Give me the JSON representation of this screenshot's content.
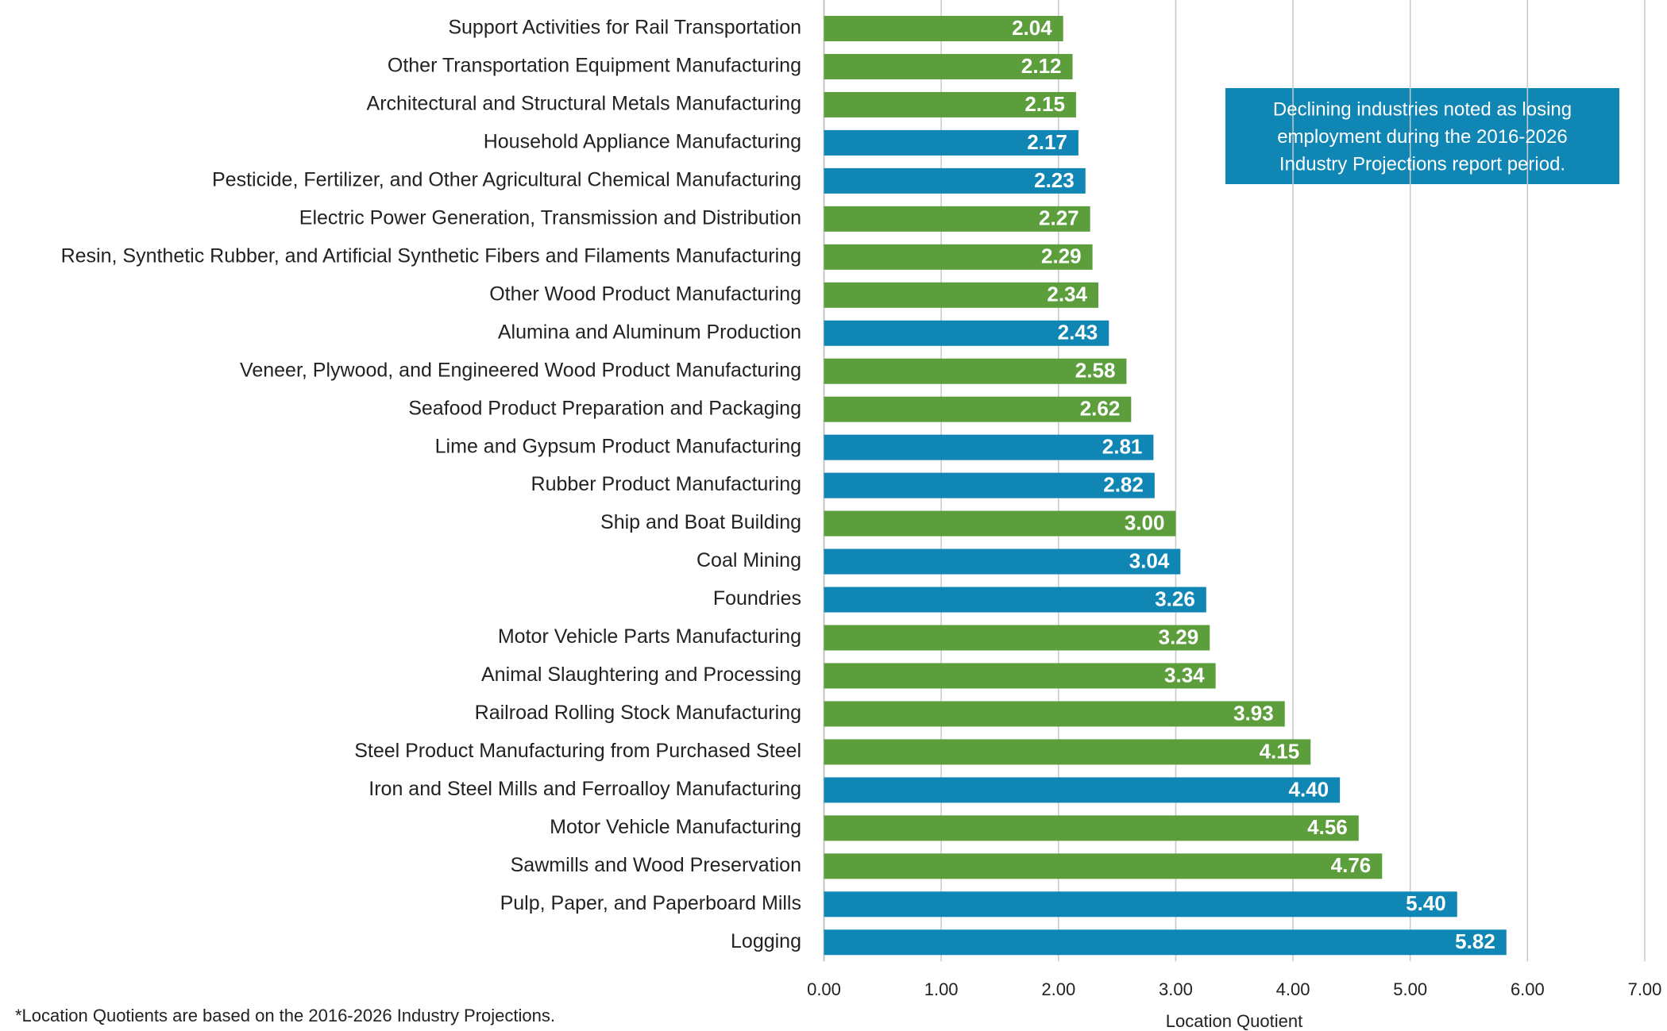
{
  "chart_data": {
    "type": "barh",
    "categories": [
      "Support Activities for Rail Transportation",
      "Other Transportation Equipment Manufacturing",
      "Architectural and Structural Metals Manufacturing",
      "Household Appliance Manufacturing",
      "Pesticide, Fertilizer, and Other Agricultural Chemical Manufacturing",
      "Electric Power Generation, Transmission and Distribution",
      "Resin, Synthetic Rubber, and Artificial Synthetic Fibers and Filaments Manufacturing",
      "Other Wood Product Manufacturing",
      "Alumina and Aluminum Production",
      "Veneer, Plywood, and Engineered Wood Product Manufacturing",
      "Seafood Product Preparation and Packaging",
      "Lime and Gypsum Product Manufacturing",
      "Rubber Product Manufacturing",
      "Ship and Boat Building",
      "Coal Mining",
      "Foundries",
      "Motor Vehicle Parts Manufacturing",
      "Animal Slaughtering and Processing",
      "Railroad Rolling Stock Manufacturing",
      "Steel Product Manufacturing from Purchased Steel",
      "Iron and Steel Mills and Ferroalloy Manufacturing",
      "Motor Vehicle Manufacturing",
      "Sawmills and Wood Preservation",
      "Pulp, Paper, and Paperboard Mills",
      "Logging"
    ],
    "values": [
      2.04,
      2.12,
      2.15,
      2.17,
      2.23,
      2.27,
      2.29,
      2.34,
      2.43,
      2.58,
      2.62,
      2.81,
      2.82,
      3.0,
      3.04,
      3.26,
      3.29,
      3.34,
      3.93,
      4.15,
      4.4,
      4.56,
      4.76,
      5.4,
      5.82
    ],
    "value_labels": [
      "2.04",
      "2.12",
      "2.15",
      "2.17",
      "2.23",
      "2.27",
      "2.29",
      "2.34",
      "2.43",
      "2.58",
      "2.62",
      "2.81",
      "2.82",
      "3.00",
      "3.04",
      "3.26",
      "3.29",
      "3.34",
      "3.93",
      "4.15",
      "4.40",
      "4.56",
      "4.76",
      "5.40",
      "5.82"
    ],
    "colors": [
      "#5b9e3b",
      "#5b9e3b",
      "#5b9e3b",
      "#0f86b3",
      "#0f86b3",
      "#5b9e3b",
      "#5b9e3b",
      "#5b9e3b",
      "#0f86b3",
      "#5b9e3b",
      "#5b9e3b",
      "#0f86b3",
      "#0f86b3",
      "#5b9e3b",
      "#0f86b3",
      "#0f86b3",
      "#5b9e3b",
      "#5b9e3b",
      "#5b9e3b",
      "#5b9e3b",
      "#0f86b3",
      "#5b9e3b",
      "#5b9e3b",
      "#0f86b3",
      "#0f86b3"
    ],
    "xlim": [
      0,
      7
    ],
    "xticks": [
      {
        "value": 0,
        "label": "0.00"
      },
      {
        "value": 1,
        "label": "1.00"
      },
      {
        "value": 2,
        "label": "2.00"
      },
      {
        "value": 3,
        "label": "3.00"
      },
      {
        "value": 4,
        "label": "4.00"
      },
      {
        "value": 5,
        "label": "5.00"
      },
      {
        "value": 6,
        "label": "6.00"
      },
      {
        "value": 7,
        "label": "7.00"
      }
    ],
    "grid": true,
    "x_label": "Location Quotient",
    "annotation": [
      "Declining industries noted as losing",
      "employment during the 2016-2026",
      "Industry Projections report period."
    ],
    "footnote": "*Location Quotients are based on the 2016-2026 Industry Projections."
  }
}
